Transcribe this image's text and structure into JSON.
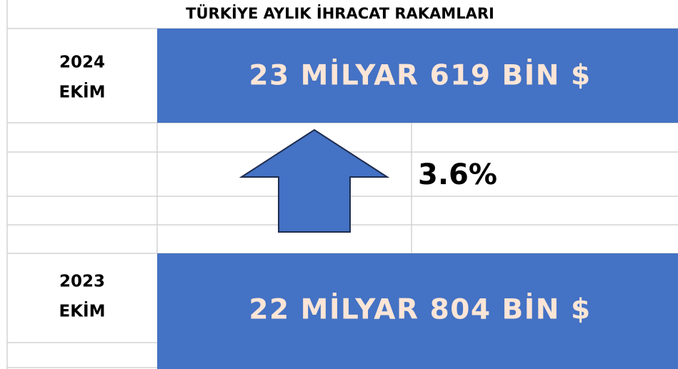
{
  "title": "TÜRKİYE AYLIK İHRACAT RAKAMLARI",
  "rows": [
    {
      "year": "2024",
      "month": "EKİM",
      "value": "23 MİLYAR 619 BİN $"
    },
    {
      "year": "2023",
      "month": "EKİM",
      "value": "22 MİLYAR 804 BİN $"
    }
  ],
  "change": "3.6%"
}
